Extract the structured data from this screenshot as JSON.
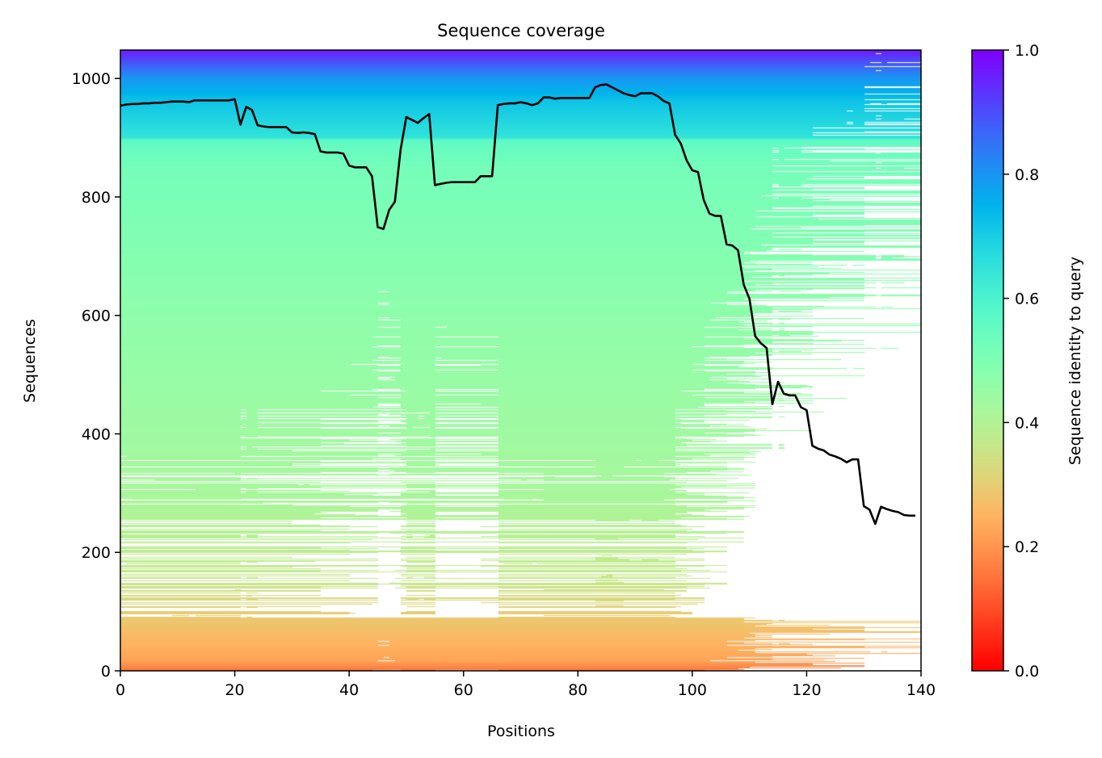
{
  "chart_data": {
    "type": "heatmap",
    "title": "Sequence coverage",
    "xlabel": "Positions",
    "ylabel": "Sequences",
    "xlim": [
      0,
      140
    ],
    "ylim": [
      0,
      1048
    ],
    "xticks": [
      0,
      20,
      40,
      60,
      80,
      100,
      120,
      140
    ],
    "yticks": [
      0,
      200,
      400,
      600,
      800,
      1000
    ],
    "colormap": "rainbow_r",
    "colorbar": {
      "label": "Sequence identity to query",
      "range": [
        0.0,
        1.0
      ],
      "ticks": [
        "0.0",
        "0.2",
        "0.4",
        "0.6",
        "0.8",
        "1.0"
      ]
    },
    "identity_by_sequence": {
      "sequence": [
        0,
        15,
        100,
        150,
        300,
        600,
        850,
        895,
        900,
        960,
        1000,
        1048
      ],
      "identity": [
        0.15,
        0.22,
        0.3,
        0.36,
        0.42,
        0.47,
        0.52,
        0.56,
        0.65,
        0.72,
        0.8,
        0.97
      ]
    },
    "coverage_line": {
      "color": "#000000",
      "x": [
        0,
        1,
        2,
        3,
        4,
        5,
        6,
        7,
        8,
        9,
        10,
        11,
        12,
        13,
        14,
        15,
        16,
        17,
        18,
        19,
        20,
        21,
        22,
        23,
        24,
        25,
        26,
        27,
        28,
        29,
        30,
        31,
        32,
        33,
        34,
        35,
        36,
        37,
        38,
        39,
        40,
        41,
        42,
        43,
        44,
        45,
        46,
        47,
        48,
        49,
        50,
        51,
        52,
        53,
        54,
        55,
        56,
        57,
        58,
        59,
        60,
        61,
        62,
        63,
        64,
        65,
        66,
        67,
        68,
        69,
        70,
        71,
        72,
        73,
        74,
        75,
        76,
        77,
        78,
        79,
        80,
        81,
        82,
        83,
        84,
        85,
        86,
        87,
        88,
        89,
        90,
        91,
        92,
        93,
        94,
        95,
        96,
        97,
        98,
        99,
        100,
        101,
        102,
        103,
        104,
        105,
        106,
        107,
        108,
        109,
        110,
        111,
        112,
        113,
        114,
        115,
        116,
        117,
        118,
        119,
        120,
        121,
        122,
        123,
        124,
        125,
        126,
        127,
        128,
        129,
        130,
        131,
        132,
        133,
        134,
        135,
        136,
        137,
        138,
        139
      ],
      "y": [
        954,
        956,
        957,
        957,
        958,
        958,
        959,
        959,
        960,
        961,
        961,
        961,
        960,
        963,
        963,
        963,
        963,
        963,
        963,
        963,
        965,
        922,
        952,
        947,
        921,
        919,
        918,
        918,
        918,
        918,
        909,
        908,
        909,
        908,
        906,
        877,
        875,
        875,
        875,
        873,
        853,
        850,
        850,
        850,
        835,
        749,
        746,
        778,
        792,
        880,
        935,
        930,
        925,
        933,
        940,
        820,
        822,
        824,
        825,
        825,
        825,
        825,
        825,
        835,
        835,
        835,
        955,
        957,
        958,
        958,
        960,
        958,
        955,
        958,
        968,
        968,
        966,
        967,
        967,
        967,
        967,
        967,
        967,
        985,
        989,
        990,
        985,
        980,
        975,
        972,
        970,
        975,
        975,
        975,
        970,
        962,
        958,
        905,
        890,
        862,
        845,
        842,
        795,
        772,
        768,
        768,
        720,
        718,
        710,
        652,
        628,
        565,
        553,
        545,
        450,
        488,
        468,
        465,
        465,
        445,
        440,
        380,
        375,
        372,
        365,
        362,
        358,
        352,
        357,
        357,
        278,
        272,
        248,
        277,
        273,
        270,
        268,
        263,
        262,
        262
      ]
    }
  }
}
